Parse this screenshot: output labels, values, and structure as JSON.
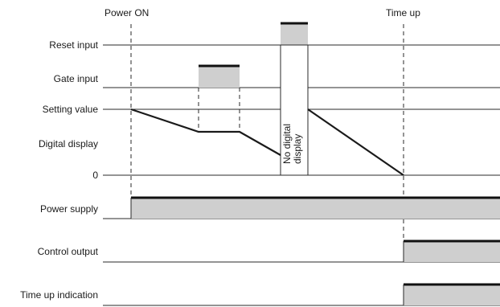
{
  "events": {
    "power_on": "Power ON",
    "time_up": "Time up"
  },
  "rows": {
    "reset_input": "Reset input",
    "gate_input": "Gate input",
    "setting_value": "Setting value",
    "digital_display": "Digital display",
    "zero": "0",
    "power_supply": "Power supply",
    "control_output": "Control output",
    "time_up_indication": "Time up indication"
  },
  "no_display_note": {
    "line1": "No digital",
    "line2": "display"
  }
}
